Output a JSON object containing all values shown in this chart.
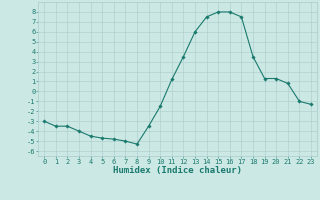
{
  "x": [
    0,
    1,
    2,
    3,
    4,
    5,
    6,
    7,
    8,
    9,
    10,
    11,
    12,
    13,
    14,
    15,
    16,
    17,
    18,
    19,
    20,
    21,
    22,
    23
  ],
  "y": [
    -3,
    -3.5,
    -3.5,
    -4,
    -4.5,
    -4.7,
    -4.8,
    -5,
    -5.3,
    -3.5,
    -1.5,
    1.2,
    3.5,
    6,
    7.5,
    8,
    8,
    7.5,
    3.5,
    1.3,
    1.3,
    0.8,
    -1,
    -1.3
  ],
  "line_color": "#1a7a6e",
  "marker": "D",
  "marker_size": 1.8,
  "bg_color": "#cce8e4",
  "grid_color": "#aaccca",
  "xlabel": "Humidex (Indice chaleur)",
  "xlim": [
    -0.5,
    23.5
  ],
  "ylim": [
    -6.5,
    9.0
  ],
  "xticks": [
    0,
    1,
    2,
    3,
    4,
    5,
    6,
    7,
    8,
    9,
    10,
    11,
    12,
    13,
    14,
    15,
    16,
    17,
    18,
    19,
    20,
    21,
    22,
    23
  ],
  "yticks": [
    -6,
    -5,
    -4,
    -3,
    -2,
    -1,
    0,
    1,
    2,
    3,
    4,
    5,
    6,
    7,
    8
  ],
  "tick_fontsize": 5,
  "xlabel_fontsize": 6.5,
  "label_color": "#1a7a6e"
}
